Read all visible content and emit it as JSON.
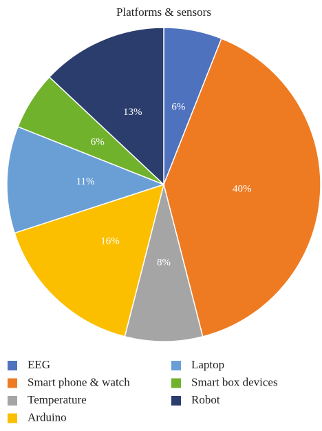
{
  "chart_data": {
    "type": "pie",
    "title": "Platforms & sensors",
    "categories": [
      "EEG",
      "Smart phone & watch",
      "Temperature",
      "Arduino",
      "Laptop",
      "Smart box devices",
      "Robot"
    ],
    "values": [
      6,
      40,
      8,
      16,
      11,
      6,
      13
    ],
    "value_labels": [
      "6%",
      "40%",
      "8%",
      "16%",
      "11%",
      "6%",
      "13%"
    ],
    "colors": [
      "#4f72be",
      "#ee7b22",
      "#a5a5a5",
      "#fbbf00",
      "#6a9fd6",
      "#70b22c",
      "#2b3d6c"
    ]
  }
}
